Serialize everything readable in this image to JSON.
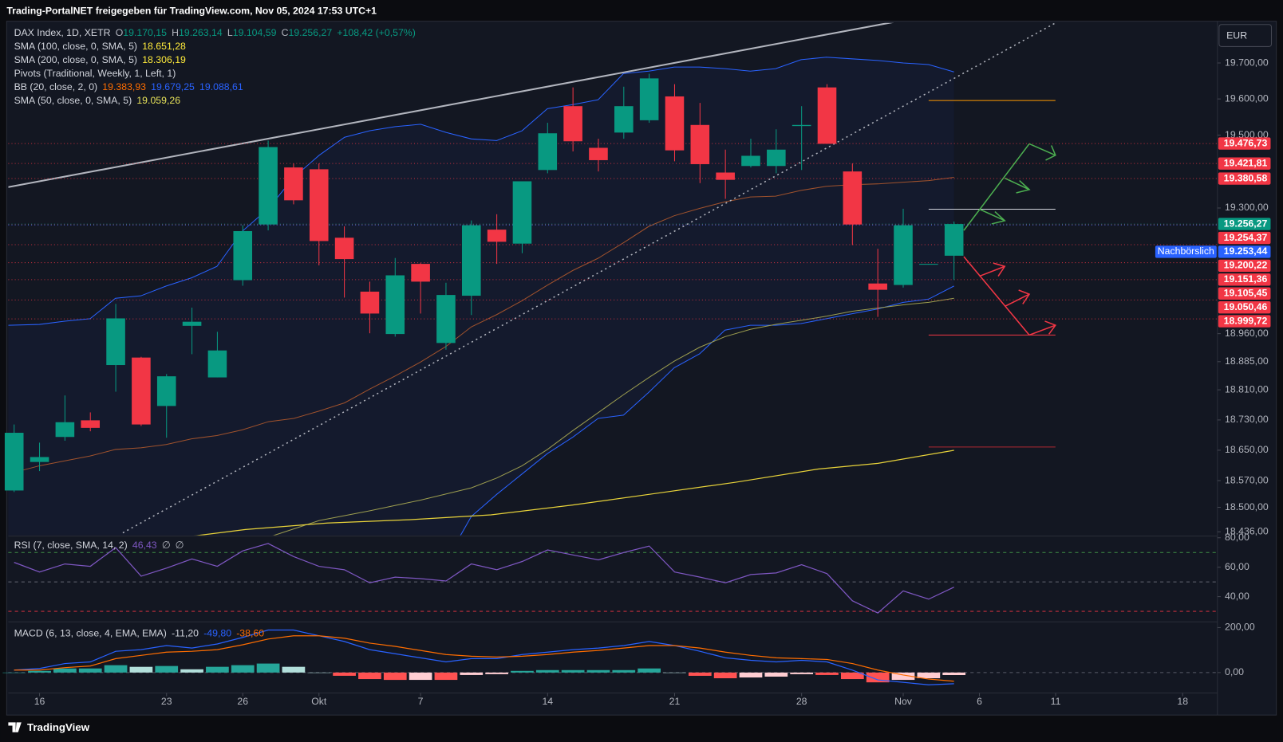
{
  "header": {
    "title": "Trading-PortalNET freigegeben für TradingView.com, Nov 05, 2024 17:53 UTC+1"
  },
  "currency": "EUR",
  "brand": "TradingView",
  "legend": [
    {
      "name": "DAX Index, 1D, XETR",
      "items": [
        {
          "text": "O",
          "color": "#b2b5be"
        },
        {
          "text": "19.170,15",
          "color": "#089981"
        },
        {
          "text": "H",
          "color": "#b2b5be"
        },
        {
          "text": "19.263,14",
          "color": "#089981"
        },
        {
          "text": "L",
          "color": "#b2b5be"
        },
        {
          "text": "19.104,59",
          "color": "#089981"
        },
        {
          "text": "C",
          "color": "#b2b5be"
        },
        {
          "text": "19.256,27",
          "color": "#089981"
        },
        {
          "text": "+108,42 (+0,57%)",
          "color": "#089981"
        }
      ]
    },
    {
      "name": "SMA (100, close, 0, SMA, 5)",
      "items": [
        {
          "text": "18.651,28",
          "color": "#ffeb3b"
        }
      ]
    },
    {
      "name": "SMA (200, close, 0, SMA, 5)",
      "items": [
        {
          "text": "18.306,19",
          "color": "#ffeb3b"
        }
      ]
    },
    {
      "name": "Pivots (Traditional, Weekly, 1, Left, 1)",
      "items": []
    },
    {
      "name": "BB (20, close, 2, 0)",
      "items": [
        {
          "text": "19.383,93",
          "color": "#ff6d00"
        },
        {
          "text": "19.679,25",
          "color": "#2962ff"
        },
        {
          "text": "19.088,61",
          "color": "#2962ff"
        }
      ]
    },
    {
      "name": "SMA (50, close, 0, SMA, 5)",
      "items": [
        {
          "text": "19.059,26",
          "color": "#e8e35a"
        }
      ]
    }
  ],
  "chart_data": [
    {
      "type": "candlestick",
      "log_scale": true,
      "grid": false,
      "xlim": [
        -0.23,
        47.37
      ],
      "xticks": [
        {
          "value": 1,
          "label": "16"
        },
        {
          "value": 6,
          "label": "23"
        },
        {
          "value": 9,
          "label": "26"
        },
        {
          "value": 12,
          "label": "Okt"
        },
        {
          "value": 16,
          "label": "7"
        },
        {
          "value": 21,
          "label": "14"
        },
        {
          "value": 26,
          "label": "21"
        },
        {
          "value": 31,
          "label": "28"
        },
        {
          "value": 35,
          "label": "Nov"
        },
        {
          "value": 38,
          "label": "6"
        },
        {
          "value": 41,
          "label": "11"
        },
        {
          "value": 46,
          "label": "18"
        }
      ],
      "ylim": [
        18427,
        19812
      ],
      "yticks": [
        {
          "value": 19700,
          "label": "19.700,00"
        },
        {
          "value": 19600,
          "label": "19.600,00"
        },
        {
          "value": 19500,
          "label": "19.500,00"
        },
        {
          "value": 19300,
          "label": "19.300,00"
        },
        {
          "value": 18960,
          "label": "18.960,00"
        },
        {
          "value": 18885,
          "label": "18.885,00"
        },
        {
          "value": 18810,
          "label": "18.810,00"
        },
        {
          "value": 18730,
          "label": "18.730,00"
        },
        {
          "value": 18650,
          "label": "18.650,00"
        },
        {
          "value": 18570,
          "label": "18.570,00"
        },
        {
          "value": 18500,
          "label": "18.500,00"
        },
        {
          "value": 18436,
          "label": "18.436,00"
        }
      ],
      "open": [
        18544,
        18619,
        18685,
        18729,
        18876,
        18896,
        18767,
        18981,
        18843,
        19104,
        19255,
        19411,
        19406,
        19219,
        19073,
        18959,
        19148,
        18935,
        19062,
        19241,
        19203,
        19404,
        19580,
        19465,
        19507,
        19541,
        19607,
        19528,
        19397,
        19415,
        19415,
        19525,
        19632,
        19400,
        19095,
        19091,
        19146,
        19170.15
      ],
      "high": [
        18718,
        18670,
        18795,
        18750,
        19040,
        18898,
        18852,
        19030,
        18965,
        19253,
        19485,
        19422,
        19422,
        19250,
        19100,
        19164,
        19150,
        19097,
        19266,
        19283,
        19373,
        19534,
        19632,
        19490,
        19634,
        19670,
        19641,
        19589,
        19460,
        19490,
        19516,
        19580,
        19641,
        19422,
        19189,
        19298,
        19148,
        19263.14
      ],
      "low": [
        18540,
        18595,
        18675,
        18700,
        18805,
        18714,
        18683,
        18905,
        18843,
        19089,
        19239,
        19310,
        19144,
        19057,
        18961,
        18952,
        19014,
        18917,
        19010,
        19148,
        19177,
        19395,
        19455,
        19400,
        19490,
        19534,
        19428,
        19368,
        19325,
        19411,
        19395,
        19404,
        19476,
        19199,
        19005,
        19084,
        19146,
        19104.59
      ],
      "close": [
        18696,
        18632,
        18724,
        18709,
        19001,
        18718,
        18846,
        18992,
        18915,
        19237,
        19467,
        19321,
        19210,
        19161,
        19014,
        19117,
        19100,
        19064,
        19253,
        19208,
        19373,
        19505,
        19483,
        19431,
        19580,
        19657,
        19458,
        19420,
        19377,
        19443,
        19460,
        19528,
        19476,
        19255,
        19078,
        19253,
        19148,
        19256.27
      ],
      "up_color": "#089981",
      "down_color": "#f23645",
      "price_lines": [
        {
          "value": 19476.73,
          "label": "19.476,73",
          "color": "#f23645"
        },
        {
          "value": 19421.81,
          "label": "19.421,81",
          "color": "#f23645"
        },
        {
          "value": 19380.58,
          "label": "19.380,58",
          "color": "#f23645"
        },
        {
          "value": 19256.27,
          "label": "19.256,27",
          "color": "#089981"
        },
        {
          "value": 19254.37,
          "label": "19.254,37",
          "color": "#f23645"
        },
        {
          "value": 19253.44,
          "label": "19.253,44",
          "color": "#2962ff",
          "tag": "Nachbörslich"
        },
        {
          "value": 19200.22,
          "label": "19.200,22",
          "color": "#f23645"
        },
        {
          "value": 19151.36,
          "label": "19.151,36",
          "color": "#f23645"
        },
        {
          "value": 19105.45,
          "label": "19.105,45",
          "color": "#f23645"
        },
        {
          "value": 19050.46,
          "label": "19.050,46",
          "color": "#f23645"
        },
        {
          "value": 18999.72,
          "label": "18.999,72",
          "color": "#f23645"
        }
      ]
    },
    {
      "type": "line",
      "title": "RSI (7, close, SMA, 14, 2)",
      "value_label": "46,43",
      "extra": [
        "∅",
        "∅"
      ],
      "color": "#7e57c2",
      "values": [
        63.3,
        56.7,
        62.2,
        60.6,
        73.3,
        53.9,
        59.4,
        65.6,
        60.6,
        71.1,
        76.1,
        67.2,
        60.6,
        58.3,
        49.4,
        53.3,
        52.2,
        50.6,
        62.2,
        58.3,
        63.9,
        71.7,
        68.3,
        65,
        70,
        74.4,
        56.7,
        53.3,
        49.4,
        55,
        56.1,
        61.7,
        55.6,
        37.2,
        28.9,
        43.9,
        38.3,
        46.43
      ],
      "ylim": [
        23.4,
        80.6
      ],
      "yticks": [
        {
          "value": 80,
          "label": "80,00"
        },
        {
          "value": 60,
          "label": "60,00"
        },
        {
          "value": 40,
          "label": "40,00"
        }
      ],
      "levels": [
        {
          "value": 70,
          "color": "#4caf50"
        },
        {
          "value": 50,
          "color": "#787b86"
        },
        {
          "value": 30,
          "color": "#f23645"
        }
      ]
    },
    {
      "type": "macd",
      "title": "MACD (6, 13, close, 4, EMA, EMA)",
      "value_labels": [
        "-11,20",
        "-49,80",
        "-38,60"
      ],
      "histogram": [
        0,
        7.3,
        18.2,
        18.2,
        32.7,
        25.4,
        29.1,
        14.5,
        25.5,
        32.8,
        40,
        25.5,
        0,
        -14.5,
        -29.1,
        -32.8,
        -32.7,
        -32.7,
        -10.9,
        -7.3,
        7.3,
        10.9,
        10.9,
        10.9,
        10.9,
        18.2,
        0,
        -14.6,
        -25.4,
        -21.9,
        -18.2,
        -7.3,
        -10.9,
        -29.1,
        -43.6,
        -32.7,
        -25.4,
        -11.2
      ],
      "macd": [
        10.9,
        18.2,
        40,
        47.3,
        94.5,
        101.8,
        120,
        109,
        127.3,
        156.4,
        189.1,
        189.1,
        163.6,
        138.2,
        101.8,
        83.6,
        65.5,
        47.3,
        61.8,
        61.8,
        80,
        90.9,
        101.8,
        109.1,
        120,
        138.2,
        120,
        94.5,
        65.5,
        54.5,
        47.3,
        54.5,
        47.3,
        10.9,
        -32.7,
        -43.6,
        -54.5,
        -49.8
      ],
      "signal": [
        10.9,
        10.9,
        21.8,
        29.1,
        61.8,
        76.4,
        90.9,
        94.5,
        101.8,
        123.6,
        149.1,
        163.6,
        163.6,
        152.7,
        130.9,
        116.4,
        98.2,
        80,
        72.7,
        69.1,
        72.7,
        80,
        90.9,
        98.2,
        109.1,
        120,
        120,
        109.1,
        90.9,
        76.4,
        65.5,
        61.8,
        58.2,
        40,
        10.9,
        -10.9,
        -29.1,
        -38.6
      ],
      "colors": {
        "histogram_label": "#d1d4dc",
        "macd": "#2962ff",
        "signal": "#ff6d00",
        "hist_up": "#26a69a",
        "hist_up_fading": "#b2dfdb",
        "hist_down": "#ff5252",
        "hist_down_fading": "#ffcdd2"
      },
      "ylim": [
        -90.9,
        221.8
      ],
      "yticks": [
        {
          "value": 200,
          "label": "200,00"
        },
        {
          "value": 0,
          "label": "0,00"
        }
      ]
    }
  ]
}
